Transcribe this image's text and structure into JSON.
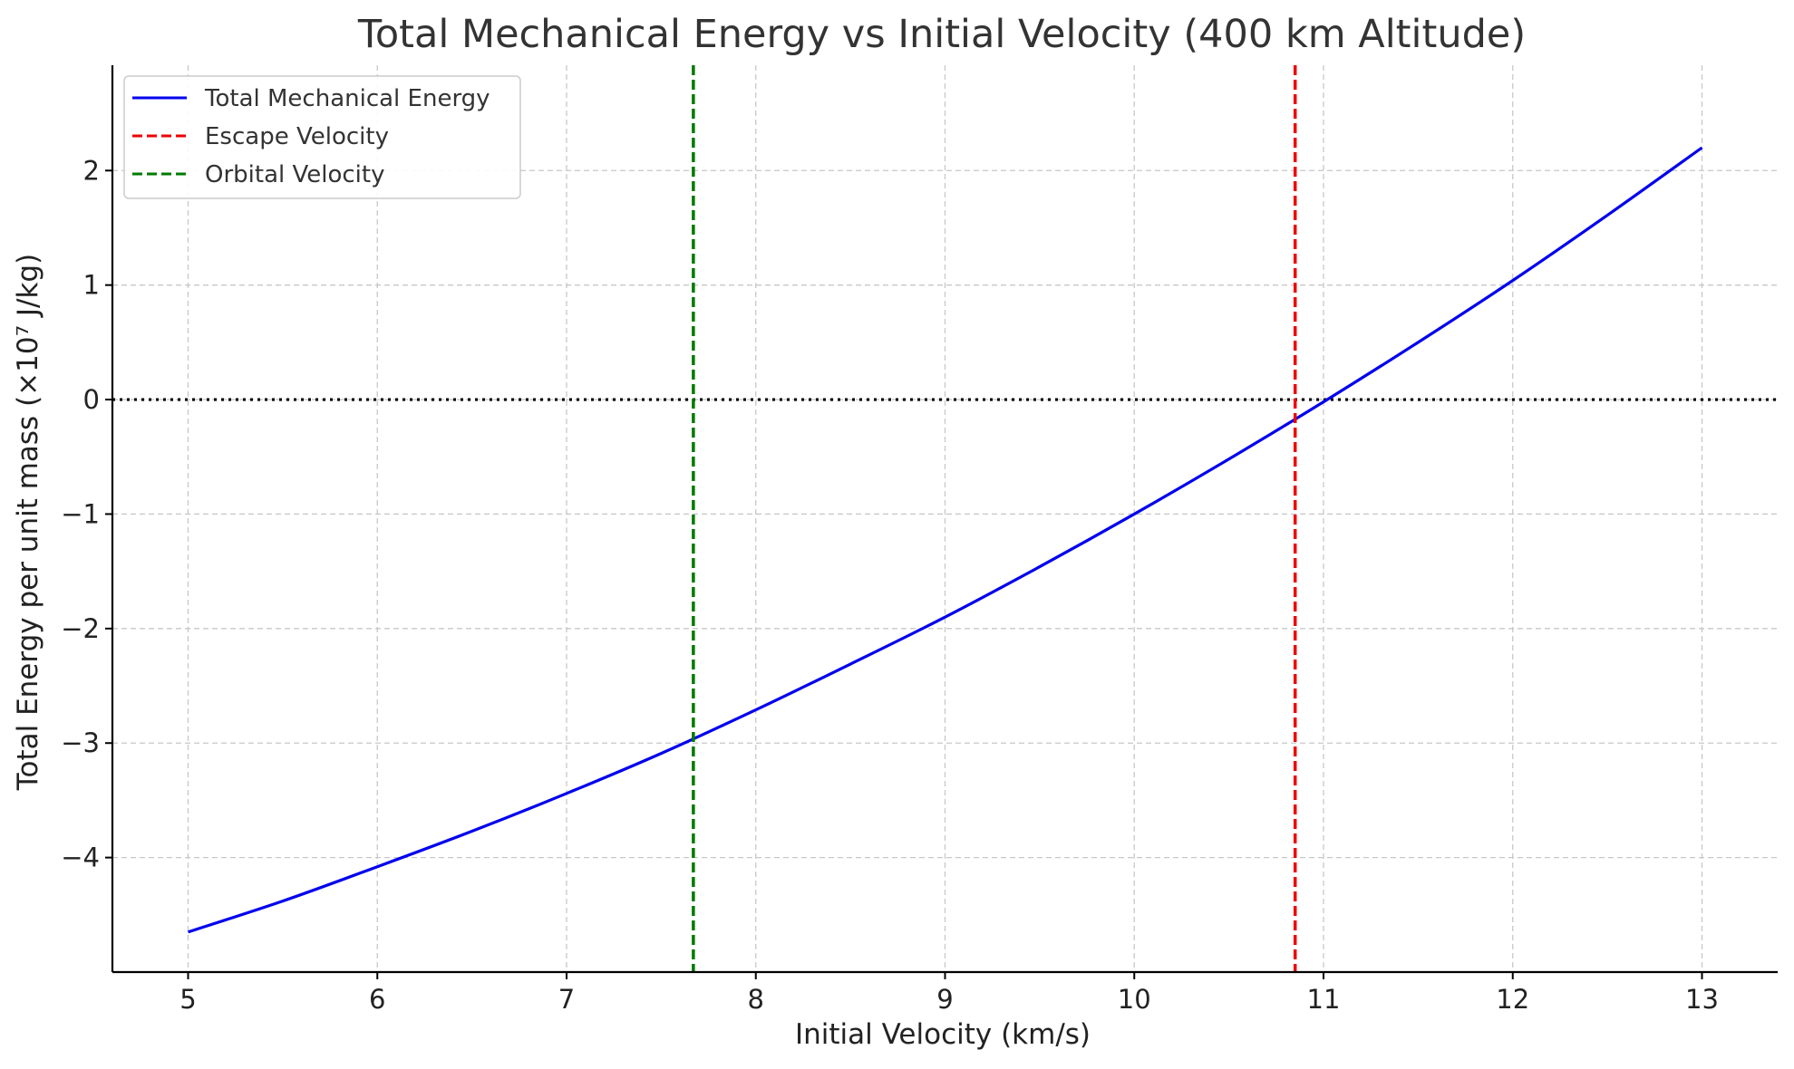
{
  "chart_data": {
    "type": "line",
    "title": "Total Mechanical Energy vs Initial Velocity (400 km Altitude)",
    "xlabel": "Initial Velocity (km/s)",
    "ylabel": "Total Energy per unit mass (×10⁷ J/kg)",
    "xlim": [
      4.6,
      13.4
    ],
    "ylim": [
      -5.0,
      2.92
    ],
    "x_ticks": [
      5,
      6,
      7,
      8,
      9,
      10,
      11,
      12,
      13
    ],
    "x_tick_labels": [
      "5",
      "6",
      "7",
      "8",
      "9",
      "10",
      "11",
      "12",
      "13"
    ],
    "y_ticks": [
      -4,
      -3,
      -2,
      -1,
      0,
      1,
      2
    ],
    "y_tick_labels": [
      "−4",
      "−3",
      "−2",
      "−1",
      "0",
      "1",
      "2"
    ],
    "grid": true,
    "legend_position": "top-left",
    "series": [
      {
        "name": "Total Mechanical Energy",
        "style": "solid",
        "color": "#0000ee",
        "x": [
          5.0,
          5.5,
          6.0,
          6.5,
          7.0,
          7.5,
          8.0,
          8.5,
          9.0,
          9.5,
          10.0,
          10.5,
          11.0,
          11.5,
          12.0,
          12.5,
          13.0
        ],
        "y": [
          -4.65,
          -4.38,
          -4.08,
          -3.77,
          -3.44,
          -3.09,
          -2.71,
          -2.31,
          -1.9,
          -1.46,
          -1.0,
          -0.52,
          -0.02,
          0.5,
          1.04,
          1.61,
          2.2
        ]
      },
      {
        "name": "Escape Velocity",
        "style": "dashed",
        "color": "#ee0000",
        "x_value": 10.85
      },
      {
        "name": "Orbital Velocity",
        "style": "dashed",
        "color": "#007a00",
        "x_value": 7.67
      }
    ],
    "reference_line": {
      "y_value": 0,
      "style": "dotted",
      "color": "#000000"
    }
  }
}
